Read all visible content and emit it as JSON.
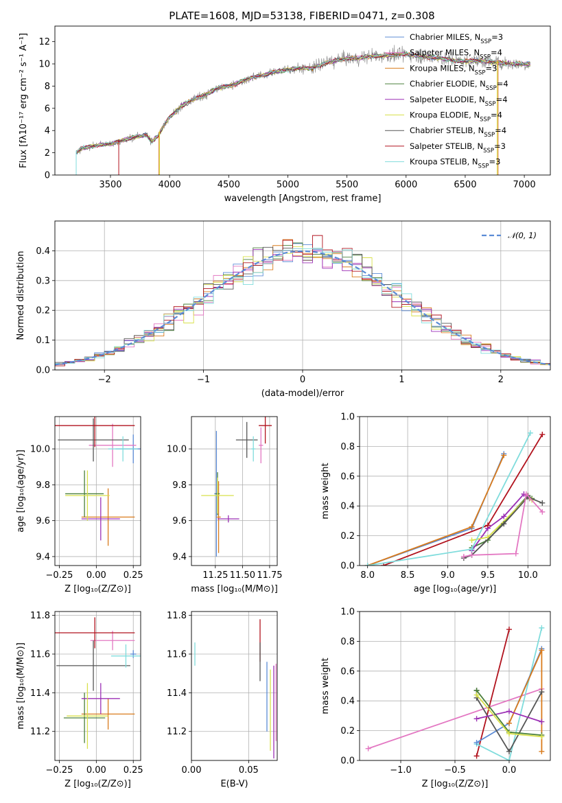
{
  "figure": {
    "title": "PLATE=1608, MJD=53138, FIBERID=0471, z=0.308"
  },
  "colors": {
    "chabrier_miles": "#5b8bd6",
    "salpeter_miles": "#e377c2",
    "kroupa_miles": "#d97b1c",
    "chabrier_elodie": "#4a7f3a",
    "salpeter_elodie": "#9b2fb5",
    "kroupa_elodie": "#d8e04a",
    "chabrier_stelib": "#555555",
    "salpeter_stelib": "#b1121d",
    "kroupa_stelib": "#7fdcdc",
    "normal": "#5b8bd6",
    "grid": "#b0b0b0",
    "observed": "#808080"
  },
  "chart_data": [
    {
      "id": "spectrum",
      "type": "line",
      "title": "PLATE=1608, MJD=53138, FIBERID=0471, z=0.308",
      "xlabel": "wavelength [Angstrom, rest frame]",
      "ylabel": "Flux [fλ10⁻¹⁷ erg cm⁻² s⁻¹ A⁻¹]",
      "xlim": [
        3030,
        7220
      ],
      "ylim": [
        0,
        13.4
      ],
      "xticks": [
        3500,
        4000,
        4500,
        5000,
        5500,
        6000,
        6500,
        7000
      ],
      "yticks": [
        0,
        2,
        4,
        6,
        8,
        10,
        12
      ],
      "grid": false,
      "legend_position": "top-right",
      "legend": [
        {
          "key": "chabrier_miles",
          "label": "Chabrier MILES, N",
          "sub": "SSP",
          "suffix": "=3"
        },
        {
          "key": "salpeter_miles",
          "label": "Salpeter MILES, N",
          "sub": "SSP",
          "suffix": "=4"
        },
        {
          "key": "kroupa_miles",
          "label": "Kroupa MILES, N",
          "sub": "SSP",
          "suffix": "=3"
        },
        {
          "key": "chabrier_elodie",
          "label": "Chabrier ELODIE, N",
          "sub": "SSP",
          "suffix": "=4"
        },
        {
          "key": "salpeter_elodie",
          "label": "Salpeter ELODIE, N",
          "sub": "SSP",
          "suffix": "=4"
        },
        {
          "key": "kroupa_elodie",
          "label": "Kroupa ELODIE, N",
          "sub": "SSP",
          "suffix": "=4"
        },
        {
          "key": "chabrier_stelib",
          "label": "Chabrier STELIB, N",
          "sub": "SSP",
          "suffix": "=4"
        },
        {
          "key": "salpeter_stelib",
          "label": "Salpeter STELIB, N",
          "sub": "SSP",
          "suffix": "=3"
        },
        {
          "key": "kroupa_stelib",
          "label": "Kroupa STELIB, N",
          "sub": "SSP",
          "suffix": "=3"
        }
      ],
      "continuum": [
        [
          3200,
          0
        ],
        [
          3210,
          2.0
        ],
        [
          3260,
          2.4
        ],
        [
          3400,
          2.7
        ],
        [
          3500,
          2.8
        ],
        [
          3600,
          3.1
        ],
        [
          3700,
          3.4
        ],
        [
          3800,
          3.6
        ],
        [
          3850,
          3.0
        ],
        [
          3900,
          3.5
        ],
        [
          3960,
          4.6
        ],
        [
          4000,
          5.2
        ],
        [
          4100,
          6.2
        ],
        [
          4200,
          6.8
        ],
        [
          4300,
          7.2
        ],
        [
          4400,
          7.8
        ],
        [
          4500,
          8.0
        ],
        [
          4600,
          8.4
        ],
        [
          4700,
          8.8
        ],
        [
          4800,
          9.0
        ],
        [
          4900,
          9.3
        ],
        [
          5000,
          9.5
        ],
        [
          5100,
          9.6
        ],
        [
          5200,
          9.6
        ],
        [
          5300,
          10.0
        ],
        [
          5400,
          10.3
        ],
        [
          5500,
          10.5
        ],
        [
          5600,
          10.5
        ],
        [
          5700,
          10.7
        ],
        [
          5800,
          10.7
        ],
        [
          5900,
          10.8
        ],
        [
          6000,
          10.9
        ],
        [
          6100,
          10.7
        ],
        [
          6200,
          10.6
        ],
        [
          6300,
          10.5
        ],
        [
          6400,
          10.3
        ],
        [
          6500,
          10.2
        ],
        [
          6600,
          10.3
        ],
        [
          6700,
          10.2
        ],
        [
          6800,
          10.1
        ],
        [
          6900,
          10.0
        ],
        [
          7000,
          10.0
        ],
        [
          7050,
          10.0
        ]
      ]
    },
    {
      "id": "residuals",
      "type": "histogram",
      "xlabel": "(data-model)/error",
      "ylabel": "Normed distribution",
      "xlim": [
        -2.5,
        2.5
      ],
      "ylim": [
        0,
        0.5
      ],
      "xticks": [
        -2,
        -1,
        0,
        1,
        2
      ],
      "yticks": [
        0.0,
        0.1,
        0.2,
        0.3,
        0.4
      ],
      "grid": true,
      "legend_position": "top-right",
      "legend": [
        {
          "label": "𝒩(0, 1)",
          "style": "dashed"
        }
      ],
      "bins": [
        -2.5,
        2.5,
        50
      ],
      "reference_curve": "normal(0,1)"
    },
    {
      "id": "age_vs_Z",
      "type": "scatter",
      "xlabel": "Z [log₁₀(Z/Z⊙)]",
      "ylabel": "age  [log₁₀(age/yr)]",
      "xlim": [
        -0.28,
        0.3
      ],
      "ylim": [
        9.35,
        10.18
      ],
      "xticks": [
        -0.25,
        0.0,
        0.25
      ],
      "yticks": [
        9.4,
        9.6,
        9.8,
        10.0
      ],
      "grid": true,
      "series": [
        {
          "key": "chabrier_miles",
          "x": 0.25,
          "y": 10.0,
          "xerr": 0.12,
          "yerr": 0.08
        },
        {
          "key": "salpeter_miles",
          "x": 0.11,
          "y": 10.02,
          "xerr": 0.16,
          "yerr": 0.12
        },
        {
          "key": "kroupa_miles",
          "x": 0.08,
          "y": 9.62,
          "xerr": 0.18,
          "yerr": 0.16
        },
        {
          "key": "chabrier_elodie",
          "x": -0.08,
          "y": 9.75,
          "xerr": 0.13,
          "yerr": 0.13
        },
        {
          "key": "salpeter_elodie",
          "x": 0.03,
          "y": 9.61,
          "xerr": 0.13,
          "yerr": 0.12
        },
        {
          "key": "kroupa_elodie",
          "x": -0.06,
          "y": 9.74,
          "xerr": 0.15,
          "yerr": 0.14
        },
        {
          "key": "chabrier_stelib",
          "x": -0.02,
          "y": 10.05,
          "xerr": 0.24,
          "yerr": 0.12
        },
        {
          "key": "salpeter_stelib",
          "x": -0.01,
          "y": 10.13,
          "xerr": 0.27,
          "yerr": 0.12
        },
        {
          "key": "kroupa_stelib",
          "x": 0.18,
          "y": 10.0,
          "xerr": 0.1,
          "yerr": 0.07
        }
      ]
    },
    {
      "id": "age_vs_mass",
      "type": "scatter",
      "xlabel": "mass [log₁₀(M/M⊙)]",
      "ylabel": "",
      "xlim": [
        11.03,
        11.82
      ],
      "ylim": [
        9.35,
        10.18
      ],
      "xticks": [
        11.25,
        11.5,
        11.75
      ],
      "xticklabels": [
        "11.25",
        "11.50",
        "11.75"
      ],
      "yticks": [
        9.4,
        9.6,
        9.8,
        10.0
      ],
      "grid": true,
      "series": [
        {
          "key": "chabrier_miles",
          "x": 11.26,
          "y": 9.75,
          "xerr": 0.02,
          "yerr": 0.35
        },
        {
          "key": "salpeter_miles",
          "x": 11.67,
          "y": 10.02,
          "xerr": 0.02,
          "yerr": 0.1
        },
        {
          "key": "kroupa_miles",
          "x": 11.28,
          "y": 9.62,
          "xerr": 0.02,
          "yerr": 0.2
        },
        {
          "key": "chabrier_elodie",
          "x": 11.27,
          "y": 9.75,
          "xerr": 0.02,
          "yerr": 0.12
        },
        {
          "key": "salpeter_elodie",
          "x": 11.37,
          "y": 9.61,
          "xerr": 0.1,
          "yerr": 0.02
        },
        {
          "key": "kroupa_elodie",
          "x": 11.27,
          "y": 9.74,
          "xerr": 0.15,
          "yerr": 0.1
        },
        {
          "key": "chabrier_stelib",
          "x": 11.54,
          "y": 10.05,
          "xerr": 0.1,
          "yerr": 0.1
        },
        {
          "key": "salpeter_stelib",
          "x": 11.71,
          "y": 10.13,
          "xerr": 0.06,
          "yerr": 0.1
        },
        {
          "key": "kroupa_stelib",
          "x": 11.6,
          "y": 10.0,
          "xerr": 0.02,
          "yerr": 0.07
        }
      ]
    },
    {
      "id": "weight_vs_age",
      "type": "line",
      "xlabel": "age  [log₁₀(age/yr)]",
      "ylabel": "mass weight",
      "xlim": [
        7.9,
        10.28
      ],
      "ylim": [
        0,
        1.0
      ],
      "xticks": [
        8.0,
        8.5,
        9.0,
        9.5,
        10.0
      ],
      "yticks": [
        0.0,
        0.2,
        0.4,
        0.6,
        0.8,
        1.0
      ],
      "grid": true,
      "series": [
        {
          "key": "chabrier_miles",
          "x": [
            8.0,
            9.3,
            9.7
          ],
          "y": [
            0.0,
            0.25,
            0.75
          ]
        },
        {
          "key": "kroupa_miles",
          "x": [
            8.0,
            9.3,
            9.7
          ],
          "y": [
            0.0,
            0.26,
            0.74
          ]
        },
        {
          "key": "chabrier_elodie",
          "x": [
            9.3,
            9.5,
            10.0,
            10.05
          ],
          "y": [
            0.12,
            0.17,
            0.47,
            0.45
          ]
        },
        {
          "key": "salpeter_elodie",
          "x": [
            9.3,
            9.5,
            9.7,
            9.95,
            10.02
          ],
          "y": [
            0.1,
            0.25,
            0.33,
            0.48,
            0.45
          ]
        },
        {
          "key": "kroupa_elodie",
          "x": [
            9.3,
            9.5,
            10.0,
            10.05
          ],
          "y": [
            0.17,
            0.19,
            0.46,
            0.44
          ]
        },
        {
          "key": "chabrier_stelib",
          "x": [
            9.2,
            9.3,
            9.7,
            10.0,
            10.18
          ],
          "y": [
            0.05,
            0.07,
            0.28,
            0.46,
            0.42
          ]
        },
        {
          "key": "salpeter_stelib",
          "x": [
            8.2,
            9.5,
            10.18
          ],
          "y": [
            0.0,
            0.27,
            0.88
          ]
        },
        {
          "key": "salpeter_miles",
          "x": [
            9.2,
            9.3,
            9.85,
            9.98,
            10.18
          ],
          "y": [
            0.06,
            0.07,
            0.08,
            0.48,
            0.36
          ]
        },
        {
          "key": "kroupa_stelib",
          "x": [
            8.0,
            9.3,
            10.03
          ],
          "y": [
            0.0,
            0.11,
            0.89
          ]
        }
      ]
    },
    {
      "id": "mass_vs_Z",
      "type": "scatter",
      "xlabel": "Z [log₁₀(Z/Z⊙)]",
      "ylabel": "mass [log₁₀(M/M⊙)]",
      "xlim": [
        -0.28,
        0.3
      ],
      "ylim": [
        11.05,
        11.82
      ],
      "xticks": [
        -0.25,
        0.0,
        0.25
      ],
      "yticks": [
        11.2,
        11.4,
        11.6,
        11.8
      ],
      "grid": true,
      "series": [
        {
          "key": "chabrier_miles",
          "x": 0.25,
          "y": 11.6,
          "xerr": 0.02,
          "yerr": 0.02
        },
        {
          "key": "salpeter_miles",
          "x": 0.11,
          "y": 11.67,
          "xerr": 0.15,
          "yerr": 0.05
        },
        {
          "key": "kroupa_miles",
          "x": 0.08,
          "y": 11.29,
          "xerr": 0.18,
          "yerr": 0.08
        },
        {
          "key": "chabrier_elodie",
          "x": -0.08,
          "y": 11.27,
          "xerr": 0.14,
          "yerr": 0.13
        },
        {
          "key": "salpeter_elodie",
          "x": 0.03,
          "y": 11.37,
          "xerr": 0.13,
          "yerr": 0.08
        },
        {
          "key": "kroupa_elodie",
          "x": -0.06,
          "y": 11.28,
          "xerr": 0.14,
          "yerr": 0.17
        },
        {
          "key": "chabrier_stelib",
          "x": -0.02,
          "y": 11.54,
          "xerr": 0.25,
          "yerr": 0.13
        },
        {
          "key": "salpeter_stelib",
          "x": -0.01,
          "y": 11.71,
          "xerr": 0.27,
          "yerr": 0.08
        },
        {
          "key": "kroupa_stelib",
          "x": 0.2,
          "y": 11.59,
          "xerr": 0.1,
          "yerr": 0.06
        }
      ]
    },
    {
      "id": "mass_vs_EBV",
      "type": "scatter",
      "xlabel": "E(B-V)",
      "ylabel": "",
      "xlim": [
        0.0,
        0.075
      ],
      "ylim": [
        11.05,
        11.82
      ],
      "xticks": [
        0.0,
        0.05
      ],
      "xticklabels": [
        "0.00",
        "0.05"
      ],
      "yticks": [
        11.2,
        11.4,
        11.6,
        11.8
      ],
      "grid": true,
      "series": [
        {
          "key": "kroupa_stelib",
          "x": 0.003,
          "y": 11.6,
          "xerr": 0.0,
          "yerr": 0.06
        },
        {
          "key": "salpeter_stelib",
          "x": 0.06,
          "y": 11.67,
          "xerr": 0.0,
          "yerr": 0.11
        },
        {
          "key": "chabrier_stelib",
          "x": 0.06,
          "y": 11.56,
          "xerr": 0.0,
          "yerr": 0.1
        },
        {
          "key": "chabrier_miles",
          "x": 0.066,
          "y": 11.38,
          "xerr": 0.0,
          "yerr": 0.18
        },
        {
          "key": "kroupa_elodie",
          "x": 0.069,
          "y": 11.31,
          "xerr": 0.0,
          "yerr": 0.21
        },
        {
          "key": "salpeter_elodie",
          "x": 0.072,
          "y": 11.3,
          "xerr": 0.0,
          "yerr": 0.24
        },
        {
          "key": "salpeter_miles",
          "x": 0.074,
          "y": 11.35,
          "xerr": 0.0,
          "yerr": 0.2
        }
      ]
    },
    {
      "id": "weight_vs_Z",
      "type": "line",
      "xlabel": "Z [log₁₀(Z/Z⊙)]",
      "ylabel": "mass weight",
      "xlim": [
        -1.38,
        0.38
      ],
      "ylim": [
        0,
        1.0
      ],
      "xticks": [
        -1.0,
        -0.5,
        0.0
      ],
      "yticks": [
        0.0,
        0.2,
        0.4,
        0.6,
        0.8,
        1.0
      ],
      "grid": true,
      "series": [
        {
          "key": "salpeter_miles",
          "x": [
            -1.3,
            0.3
          ],
          "y": [
            0.08,
            0.48
          ]
        },
        {
          "key": "salpeter_stelib",
          "x": [
            -0.3,
            0.0
          ],
          "y": [
            0.03,
            0.88
          ]
        },
        {
          "key": "kroupa_stelib",
          "x": [
            -0.3,
            0.0,
            0.3
          ],
          "y": [
            0.11,
            0.0,
            0.89
          ]
        },
        {
          "key": "chabrier_miles",
          "x": [
            -0.3,
            0.0,
            0.3
          ],
          "y": [
            0.12,
            0.25,
            0.75
          ]
        },
        {
          "key": "kroupa_miles",
          "x": [
            0.0,
            0.3,
            0.3
          ],
          "y": [
            0.25,
            0.74,
            0.06
          ]
        },
        {
          "key": "chabrier_stelib",
          "x": [
            -0.3,
            -0.3,
            0.0,
            0.3
          ],
          "y": [
            0.47,
            0.42,
            0.06,
            0.46
          ]
        },
        {
          "key": "salpeter_elodie",
          "x": [
            -0.3,
            0.0,
            0.3
          ],
          "y": [
            0.28,
            0.33,
            0.26
          ]
        },
        {
          "key": "chabrier_elodie",
          "x": [
            -0.3,
            0.0,
            0.3
          ],
          "y": [
            0.47,
            0.19,
            0.17
          ]
        },
        {
          "key": "kroupa_elodie",
          "x": [
            -0.3,
            0.0,
            0.3
          ],
          "y": [
            0.44,
            0.18,
            0.16
          ]
        }
      ]
    }
  ]
}
